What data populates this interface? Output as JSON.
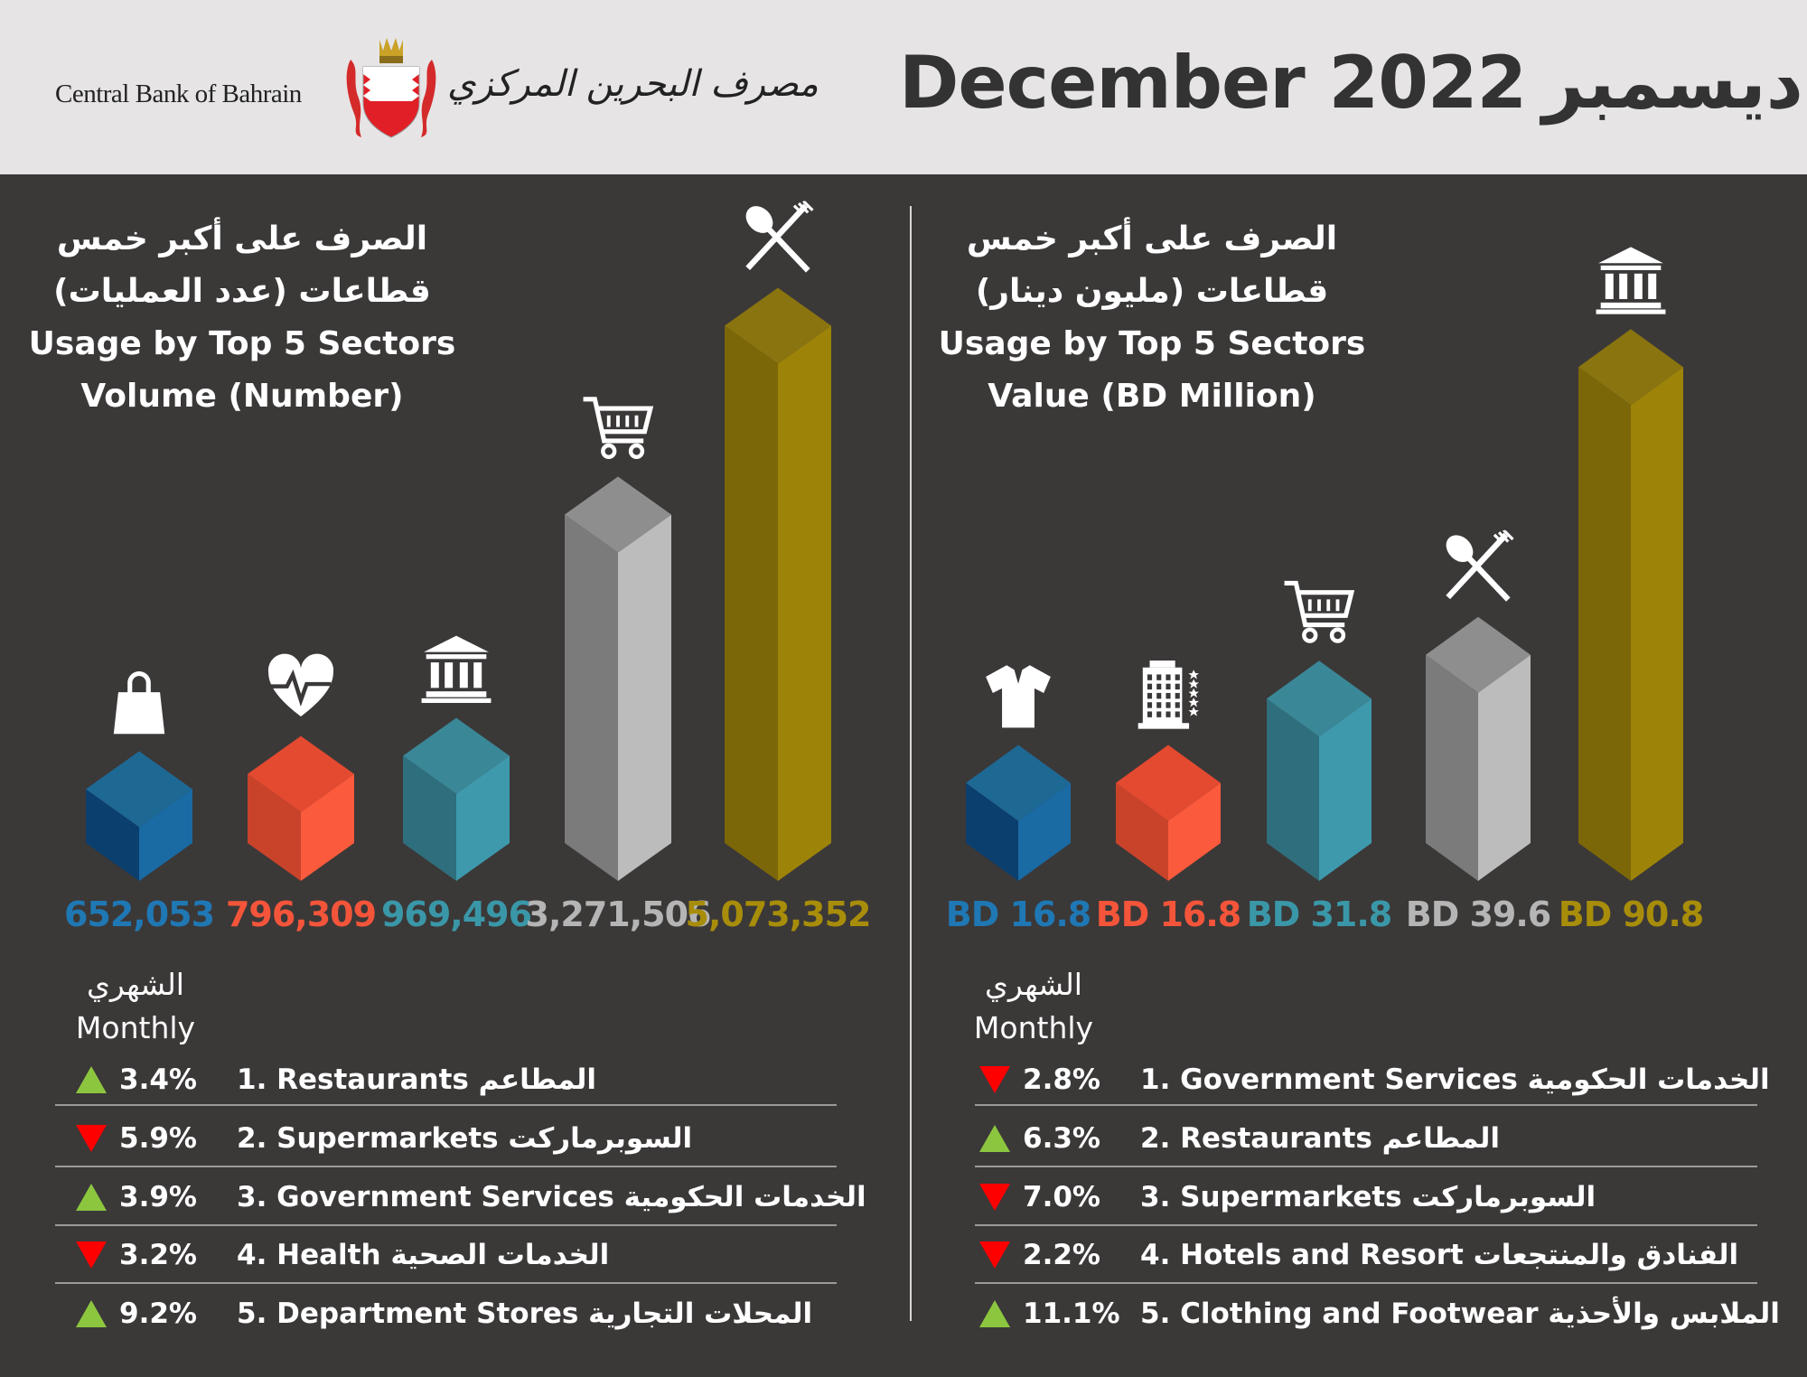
{
  "header": {
    "bank_name_en": "Central Bank of Bahrain",
    "bank_name_ar": "مصرف البحرين المركزي",
    "month_en": "December 2022",
    "month_ar": "ديسمبر"
  },
  "panels": [
    {
      "title_ar_1": "الصرف على أكبر خمس",
      "title_ar_2": "قطاعات (عدد العمليات)",
      "title_en_1": "Usage by Top 5 Sectors",
      "title_en_2": "Volume (Number)",
      "monthly_ar": "الشهري",
      "monthly_en": "Monthly",
      "rows": [
        {
          "change": "3.4%",
          "direction": "up",
          "label": "1. Restaurants المطاعم"
        },
        {
          "change": "5.9%",
          "direction": "down",
          "label": "2. Supermarkets السوبرماركت"
        },
        {
          "change": "3.9%",
          "direction": "up",
          "label": "3. Government Services الخدمات الحكومية"
        },
        {
          "change": "3.2%",
          "direction": "down",
          "label": "4. Health الخدمات الصحية"
        },
        {
          "change": "9.2%",
          "direction": "up",
          "label": "5. Department Stores المحلات التجارية"
        }
      ]
    },
    {
      "title_ar_1": "الصرف على أكبر خمس",
      "title_ar_2": "قطاعات (مليون دينار)",
      "title_en_1": "Usage by Top 5 Sectors",
      "title_en_2": "Value (BD Million)",
      "monthly_ar": "الشهري",
      "monthly_en": "Monthly",
      "rows": [
        {
          "change": "2.8%",
          "direction": "down",
          "label": "1. Government Services الخدمات الحكومية"
        },
        {
          "change": "6.3%",
          "direction": "up",
          "label": "2. Restaurants المطاعم"
        },
        {
          "change": "7.0%",
          "direction": "down",
          "label": "3. Supermarkets السوبرماركت"
        },
        {
          "change": "2.2%",
          "direction": "down",
          "label": "4. Hotels and Resort الفنادق والمنتجعات"
        },
        {
          "change": "11.1%",
          "direction": "up",
          "label": "5. Clothing and Footwear الملابس والأحذية"
        }
      ]
    }
  ],
  "colors": {
    "up": "#8cc63f",
    "down": "#ff0000"
  },
  "chart_data": [
    {
      "type": "bar",
      "title": "Usage by Top 5 Sectors Volume (Number)",
      "categories": [
        "Department Stores",
        "Health",
        "Government Services",
        "Supermarkets",
        "Restaurants"
      ],
      "values": [
        652053,
        796309,
        969496,
        3271506,
        5073352
      ],
      "value_labels": [
        "652,053",
        "796,309",
        "969,496",
        "3,271,506",
        "5,073,352"
      ],
      "icons": [
        "shopping-bag",
        "heart-pulse",
        "bank",
        "shopping-cart",
        "fork-knife"
      ],
      "colors": [
        "#1f78b4",
        "#f4553a",
        "#3a97a8",
        "#b5b5b5",
        "#a88d0a"
      ],
      "xlabel": "",
      "ylabel": ""
    },
    {
      "type": "bar",
      "title": "Usage by Top 5 Sectors Value (BD Million)",
      "categories": [
        "Clothing and Footwear",
        "Hotels and Resort",
        "Supermarkets",
        "Restaurants",
        "Government Services"
      ],
      "values": [
        16.8,
        16.8,
        31.8,
        39.6,
        90.8
      ],
      "value_labels": [
        "BD 16.8",
        "BD 16.8",
        "BD 31.8",
        "BD 39.6",
        "BD 90.8"
      ],
      "icons": [
        "shirt",
        "hotel",
        "shopping-cart",
        "fork-knife",
        "bank"
      ],
      "colors": [
        "#1f78b4",
        "#f4553a",
        "#3a97a8",
        "#b5b5b5",
        "#a88d0a"
      ],
      "xlabel": "",
      "ylabel": ""
    }
  ]
}
